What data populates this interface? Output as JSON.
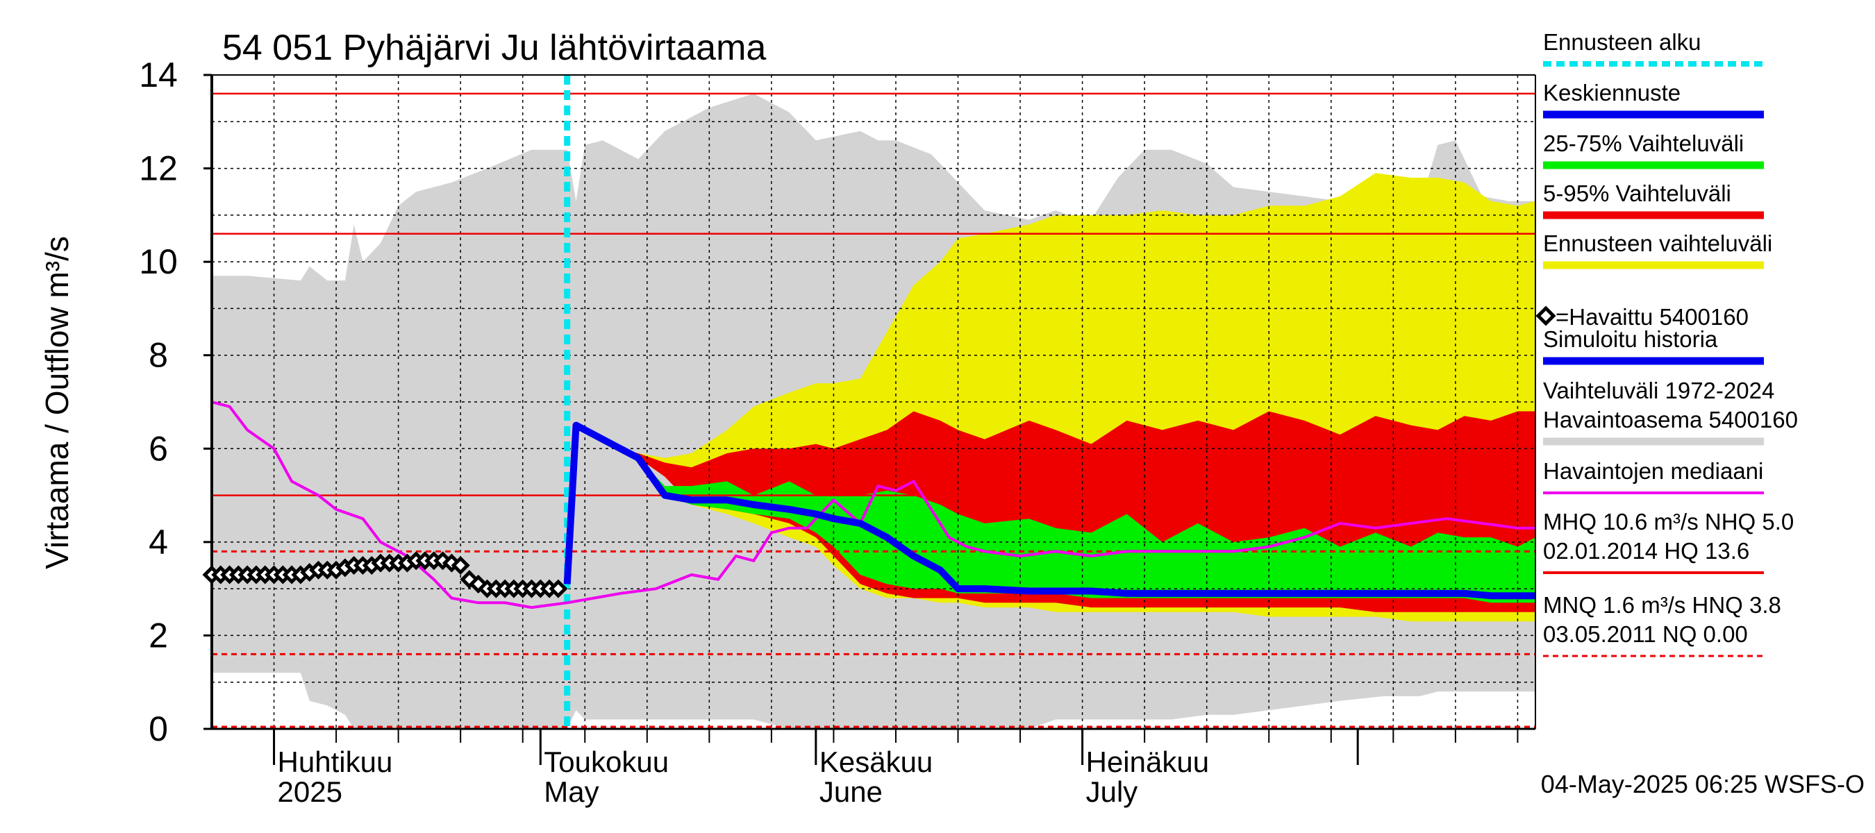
{
  "chart_data": {
    "type": "area",
    "title": "54 051 Pyhäjärvi Ju lähtövirtaama",
    "ylabel": "Virtaama / Outflow    m³/s",
    "ylim": [
      0,
      14
    ],
    "xlim": [
      "2025-03-25",
      "2025-08-21"
    ],
    "y_ticks": [
      0,
      2,
      4,
      6,
      8,
      10,
      12,
      14
    ],
    "grid": true,
    "month_labels": [
      {
        "date": "2025-04-01",
        "fi": "Huhtikuu",
        "en": "2025"
      },
      {
        "date": "2025-05-01",
        "fi": "Toukokuu",
        "en": "May"
      },
      {
        "date": "2025-06-01",
        "fi": "Kesäkuu",
        "en": "June"
      },
      {
        "date": "2025-07-01",
        "fi": "Heinäkuu",
        "en": "July"
      }
    ],
    "forecast_start": "2025-05-04",
    "reference_lines": [
      {
        "name": "HQ",
        "value": 13.6,
        "style": "solid"
      },
      {
        "name": "MHQ",
        "value": 10.6,
        "style": "solid"
      },
      {
        "name": "NHQ",
        "value": 5.0,
        "style": "solid"
      },
      {
        "name": "HNQ",
        "value": 3.8,
        "style": "dashed"
      },
      {
        "name": "MNQ",
        "value": 1.6,
        "style": "dashed"
      },
      {
        "name": "NQ",
        "value": 0.0,
        "style": "dashed"
      }
    ],
    "history_band": {
      "x": [
        "2025-03-25",
        "2025-03-29",
        "2025-04-04",
        "2025-04-05",
        "2025-04-07",
        "2025-04-09",
        "2025-04-10",
        "2025-04-11",
        "2025-04-13",
        "2025-04-15",
        "2025-04-17",
        "2025-04-21",
        "2025-04-25",
        "2025-04-30",
        "2025-05-04",
        "2025-05-05",
        "2025-05-06",
        "2025-05-08",
        "2025-05-12",
        "2025-05-15",
        "2025-05-20",
        "2025-05-25",
        "2025-05-29",
        "2025-06-01",
        "2025-06-06",
        "2025-06-08",
        "2025-06-10",
        "2025-06-14",
        "2025-06-20",
        "2025-06-25",
        "2025-06-28",
        "2025-07-01",
        "2025-07-02",
        "2025-07-05",
        "2025-07-08",
        "2025-07-11",
        "2025-07-15",
        "2025-07-18",
        "2025-07-22",
        "2025-07-26",
        "2025-07-30",
        "2025-08-04",
        "2025-08-08",
        "2025-08-10",
        "2025-08-12",
        "2025-08-15",
        "2025-08-18",
        "2025-08-21"
      ],
      "upper": [
        9.7,
        9.7,
        9.6,
        9.9,
        9.6,
        9.6,
        10.8,
        10.0,
        10.4,
        11.2,
        11.5,
        11.7,
        12.0,
        12.4,
        12.4,
        11.3,
        12.5,
        12.6,
        12.2,
        12.8,
        13.3,
        13.6,
        13.2,
        12.6,
        12.8,
        12.6,
        12.6,
        12.3,
        11.1,
        10.9,
        11.1,
        10.9,
        10.9,
        11.8,
        12.4,
        12.4,
        12.1,
        11.6,
        11.5,
        11.4,
        11.3,
        11.2,
        11.2,
        12.5,
        12.6,
        11.4,
        11.3,
        11.3
      ],
      "lower": [
        1.2,
        1.2,
        1.2,
        0.6,
        0.5,
        0.3,
        0.0,
        0.0,
        0.0,
        0.0,
        0.0,
        0.0,
        0.0,
        0.0,
        0.0,
        0.4,
        0.2,
        0.2,
        0.2,
        0.2,
        0.2,
        0.2,
        0.0,
        0.0,
        0.0,
        0.0,
        0.0,
        0.0,
        0.0,
        0.0,
        0.2,
        0.2,
        0.2,
        0.2,
        0.2,
        0.2,
        0.3,
        0.3,
        0.4,
        0.5,
        0.6,
        0.7,
        0.7,
        0.8,
        0.8,
        0.8,
        0.8,
        0.8
      ]
    },
    "forecast_bands": {
      "x": [
        "2025-05-04",
        "2025-05-05",
        "2025-05-08",
        "2025-05-10",
        "2025-05-12",
        "2025-05-15",
        "2025-05-18",
        "2025-05-22",
        "2025-05-25",
        "2025-05-29",
        "2025-06-01",
        "2025-06-03",
        "2025-06-06",
        "2025-06-09",
        "2025-06-12",
        "2025-06-15",
        "2025-06-17",
        "2025-06-20",
        "2025-06-25",
        "2025-06-28",
        "2025-07-02",
        "2025-07-06",
        "2025-07-10",
        "2025-07-14",
        "2025-07-18",
        "2025-07-22",
        "2025-07-26",
        "2025-07-30",
        "2025-08-03",
        "2025-08-07",
        "2025-08-10",
        "2025-08-13",
        "2025-08-16",
        "2025-08-19",
        "2025-08-21"
      ],
      "range": {
        "upper": [
          3.1,
          6.5,
          6.1,
          6.0,
          5.9,
          5.8,
          5.9,
          6.4,
          6.9,
          7.2,
          7.4,
          7.4,
          7.5,
          8.5,
          9.5,
          10.0,
          10.5,
          10.6,
          10.8,
          11.0,
          11.0,
          11.0,
          11.1,
          11.0,
          11.0,
          11.2,
          11.2,
          11.4,
          11.9,
          11.8,
          11.8,
          11.7,
          11.3,
          11.2,
          11.3
        ],
        "lower": [
          3.1,
          6.5,
          6.1,
          6.0,
          5.8,
          5.4,
          4.8,
          4.6,
          4.4,
          4.1,
          3.9,
          3.5,
          3.0,
          2.8,
          2.8,
          2.7,
          2.7,
          2.6,
          2.6,
          2.5,
          2.5,
          2.5,
          2.5,
          2.5,
          2.5,
          2.4,
          2.4,
          2.4,
          2.4,
          2.3,
          2.3,
          2.3,
          2.3,
          2.3,
          2.3
        ]
      },
      "p5_95": {
        "upper": [
          3.1,
          6.5,
          6.1,
          6.0,
          5.9,
          5.7,
          5.6,
          5.9,
          6.0,
          6.0,
          6.1,
          6.0,
          6.2,
          6.4,
          6.8,
          6.6,
          6.4,
          6.2,
          6.6,
          6.4,
          6.1,
          6.6,
          6.4,
          6.6,
          6.4,
          6.8,
          6.6,
          6.3,
          6.7,
          6.5,
          6.4,
          6.7,
          6.6,
          6.8,
          6.8
        ],
        "lower": [
          3.1,
          6.5,
          6.1,
          6.0,
          5.8,
          5.4,
          4.8,
          4.7,
          4.6,
          4.4,
          4.1,
          3.7,
          3.1,
          2.9,
          2.8,
          2.8,
          2.8,
          2.7,
          2.7,
          2.7,
          2.6,
          2.6,
          2.6,
          2.6,
          2.6,
          2.6,
          2.6,
          2.6,
          2.5,
          2.5,
          2.5,
          2.5,
          2.5,
          2.5,
          2.5
        ]
      },
      "p25_75": {
        "upper": [
          3.1,
          6.5,
          6.1,
          6.0,
          5.8,
          5.2,
          5.2,
          5.3,
          5.0,
          5.3,
          5.0,
          5.0,
          5.0,
          5.1,
          5.0,
          4.8,
          4.6,
          4.4,
          4.5,
          4.3,
          4.2,
          4.6,
          4.0,
          4.4,
          4.0,
          4.1,
          4.3,
          3.9,
          4.2,
          3.9,
          4.2,
          4.1,
          4.1,
          3.9,
          4.1
        ],
        "lower": [
          3.1,
          6.5,
          6.1,
          6.0,
          5.8,
          5.0,
          4.8,
          4.7,
          4.6,
          4.5,
          4.2,
          3.9,
          3.3,
          3.1,
          3.0,
          3.0,
          2.9,
          2.9,
          2.9,
          2.9,
          2.8,
          2.8,
          2.8,
          2.8,
          2.8,
          2.8,
          2.8,
          2.8,
          2.8,
          2.8,
          2.8,
          2.8,
          2.7,
          2.7,
          2.7
        ]
      }
    },
    "series": [
      {
        "name": "Havaintojen mediaani",
        "x": [
          "2025-03-25",
          "2025-03-27",
          "2025-03-29",
          "2025-04-01",
          "2025-04-03",
          "2025-04-06",
          "2025-04-08",
          "2025-04-11",
          "2025-04-13",
          "2025-04-16",
          "2025-04-19",
          "2025-04-21",
          "2025-04-24",
          "2025-04-27",
          "2025-04-30",
          "2025-05-04",
          "2025-05-07",
          "2025-05-10",
          "2025-05-14",
          "2025-05-18",
          "2025-05-21",
          "2025-05-23",
          "2025-05-25",
          "2025-05-27",
          "2025-05-29",
          "2025-05-31",
          "2025-06-03",
          "2025-06-06",
          "2025-06-08",
          "2025-06-10",
          "2025-06-12",
          "2025-06-14",
          "2025-06-16",
          "2025-06-18",
          "2025-06-20",
          "2025-06-24",
          "2025-06-28",
          "2025-07-02",
          "2025-07-06",
          "2025-07-10",
          "2025-07-14",
          "2025-07-18",
          "2025-07-22",
          "2025-07-26",
          "2025-07-30",
          "2025-08-03",
          "2025-08-07",
          "2025-08-11",
          "2025-08-15",
          "2025-08-19",
          "2025-08-21"
        ],
        "values": [
          7.0,
          6.9,
          6.4,
          6.0,
          5.3,
          5.0,
          4.7,
          4.5,
          4.0,
          3.7,
          3.2,
          2.8,
          2.7,
          2.7,
          2.6,
          2.7,
          2.8,
          2.9,
          3.0,
          3.3,
          3.2,
          3.7,
          3.6,
          4.2,
          4.3,
          4.3,
          4.9,
          4.4,
          5.2,
          5.1,
          5.3,
          4.7,
          4.1,
          3.9,
          3.8,
          3.7,
          3.8,
          3.7,
          3.8,
          3.8,
          3.8,
          3.8,
          3.9,
          4.1,
          4.4,
          4.3,
          4.4,
          4.5,
          4.4,
          4.3,
          4.3
        ]
      },
      {
        "name": "Keskiennuste",
        "x": [
          "2025-05-04",
          "2025-05-05",
          "2025-05-08",
          "2025-05-10",
          "2025-05-12",
          "2025-05-15",
          "2025-05-18",
          "2025-05-22",
          "2025-05-25",
          "2025-05-29",
          "2025-06-01",
          "2025-06-03",
          "2025-06-06",
          "2025-06-09",
          "2025-06-12",
          "2025-06-15",
          "2025-06-17",
          "2025-06-20",
          "2025-06-25",
          "2025-06-28",
          "2025-07-02",
          "2025-07-06",
          "2025-07-10",
          "2025-07-14",
          "2025-07-18",
          "2025-07-22",
          "2025-07-26",
          "2025-07-30",
          "2025-08-03",
          "2025-08-07",
          "2025-08-10",
          "2025-08-13",
          "2025-08-16",
          "2025-08-19",
          "2025-08-21"
        ],
        "values": [
          3.1,
          6.5,
          6.2,
          6.0,
          5.8,
          5.0,
          4.9,
          4.9,
          4.8,
          4.7,
          4.6,
          4.5,
          4.4,
          4.1,
          3.7,
          3.4,
          3.0,
          3.0,
          2.95,
          2.95,
          2.95,
          2.9,
          2.9,
          2.9,
          2.9,
          2.9,
          2.9,
          2.9,
          2.9,
          2.9,
          2.9,
          2.9,
          2.85,
          2.85,
          2.85
        ]
      },
      {
        "name": "Havaittu 5400160",
        "x": [
          "2025-03-25",
          "2025-03-26",
          "2025-03-27",
          "2025-03-28",
          "2025-03-29",
          "2025-03-30",
          "2025-03-31",
          "2025-04-01",
          "2025-04-02",
          "2025-04-03",
          "2025-04-04",
          "2025-04-05",
          "2025-04-06",
          "2025-04-07",
          "2025-04-08",
          "2025-04-09",
          "2025-04-10",
          "2025-04-11",
          "2025-04-12",
          "2025-04-13",
          "2025-04-14",
          "2025-04-15",
          "2025-04-16",
          "2025-04-17",
          "2025-04-18",
          "2025-04-19",
          "2025-04-20",
          "2025-04-21",
          "2025-04-22",
          "2025-04-23",
          "2025-04-24",
          "2025-04-25",
          "2025-04-26",
          "2025-04-27",
          "2025-04-28",
          "2025-04-29",
          "2025-04-30",
          "2025-05-01",
          "2025-05-02",
          "2025-05-03"
        ],
        "values": [
          3.3,
          3.3,
          3.3,
          3.3,
          3.3,
          3.3,
          3.3,
          3.3,
          3.3,
          3.3,
          3.3,
          3.35,
          3.4,
          3.4,
          3.4,
          3.45,
          3.5,
          3.5,
          3.5,
          3.55,
          3.55,
          3.55,
          3.55,
          3.6,
          3.6,
          3.6,
          3.6,
          3.55,
          3.5,
          3.2,
          3.1,
          3.0,
          3.0,
          3.0,
          3.0,
          3.0,
          3.0,
          3.0,
          3.0,
          3.0
        ]
      }
    ],
    "legend": {
      "placement": "right",
      "entries": [
        {
          "label": "Ennusteen alku",
          "color": "#00e5ee",
          "style": "dotted"
        },
        {
          "label": "Keskiennuste",
          "color": "#0000ee",
          "style": "line"
        },
        {
          "label": "25-75% Vaihteluväli",
          "color": "#00ee00",
          "style": "line"
        },
        {
          "label": "5-95% Vaihteluväli",
          "color": "#ee0000",
          "style": "line"
        },
        {
          "label": "Ennusteen vaihteluväli",
          "color": "#eeee00",
          "style": "line"
        },
        {
          "label": "=Havaittu 5400160",
          "color": "#000000",
          "style": "marker"
        },
        {
          "label": "Simuloitu historia",
          "color": "#0000ee",
          "style": "line"
        },
        {
          "label": "Vaihteluväli 1972-2024",
          "label2": " Havaintoasema 5400160",
          "color": "#d3d3d3",
          "style": "line"
        },
        {
          "label": "Havaintojen mediaani",
          "color": "#ee00ee",
          "style": "thin"
        },
        {
          "label": "MHQ 10.6 m³/s NHQ  5.0",
          "label2": "02.01.2014 HQ 13.6",
          "color": "#ee0000",
          "style": "thin"
        },
        {
          "label": "MNQ  1.6 m³/s HNQ  3.8",
          "label2": "03.05.2011 NQ 0.00",
          "color": "#ee0000",
          "style": "dashed"
        }
      ]
    },
    "footer": "04-May-2025 06:25 WSFS-O",
    "colors": {
      "history": "#d3d3d3",
      "range": "#eeee00",
      "p5_95": "#ee0000",
      "p25_75": "#00ee00",
      "mean": "#0000ee",
      "median": "#ee00ee",
      "reference": "#ee0000",
      "forecast_start": "#00e5ee"
    }
  }
}
